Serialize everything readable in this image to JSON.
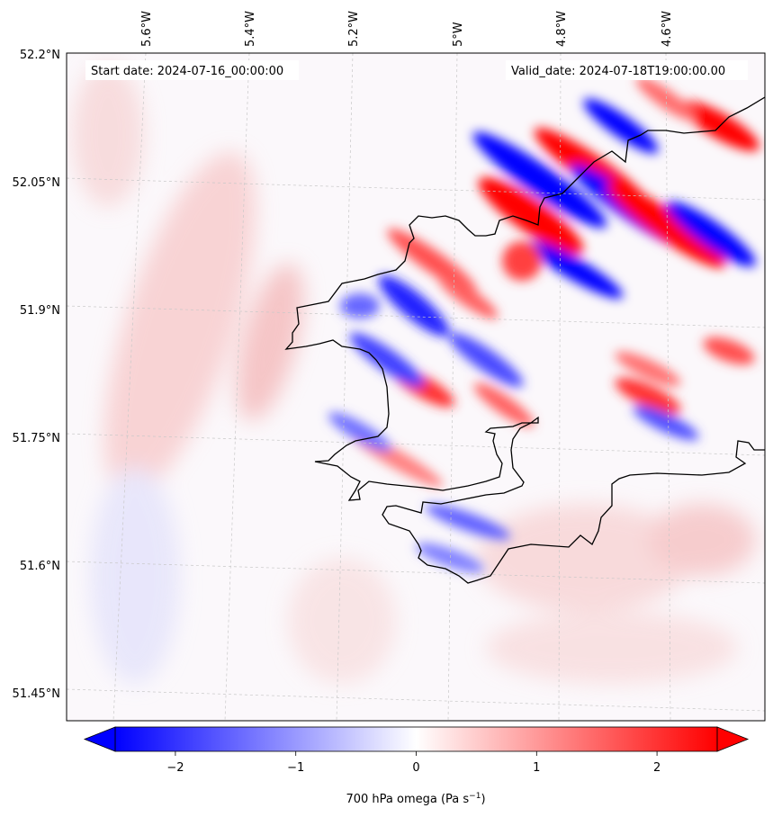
{
  "map": {
    "start_label": "Start date: 2024-07-16_00:00:00",
    "valid_label": "Valid_date: 2024-07-18T19:00:00.00",
    "lat_ticks": [
      "52.2°N",
      "52.05°N",
      "51.9°N",
      "51.75°N",
      "51.6°N",
      "51.45°N"
    ],
    "lon_ticks": [
      "5.6°W",
      "5.4°W",
      "5.2°W",
      "5°W",
      "4.8°W",
      "4.6°W"
    ],
    "extent": {
      "lon_min": -5.75,
      "lon_max": -4.42,
      "lat_min": 51.42,
      "lat_max": 52.2
    },
    "coastline_color": "#000000",
    "gridlines": true
  },
  "colorbar": {
    "title": "700 hPa omega (Pa s",
    "title_sup": "−1",
    "title_close": ")",
    "tick_labels": [
      "−2",
      "−1",
      "0",
      "1",
      "2"
    ],
    "tick_values": [
      -2,
      -1,
      0,
      1,
      2
    ],
    "range": [
      -2.5,
      2.5
    ],
    "extend": "both",
    "colormap": "bwr",
    "low_color": "#0000ff",
    "mid_color": "#ffffff",
    "high_color": "#ff0000"
  }
}
